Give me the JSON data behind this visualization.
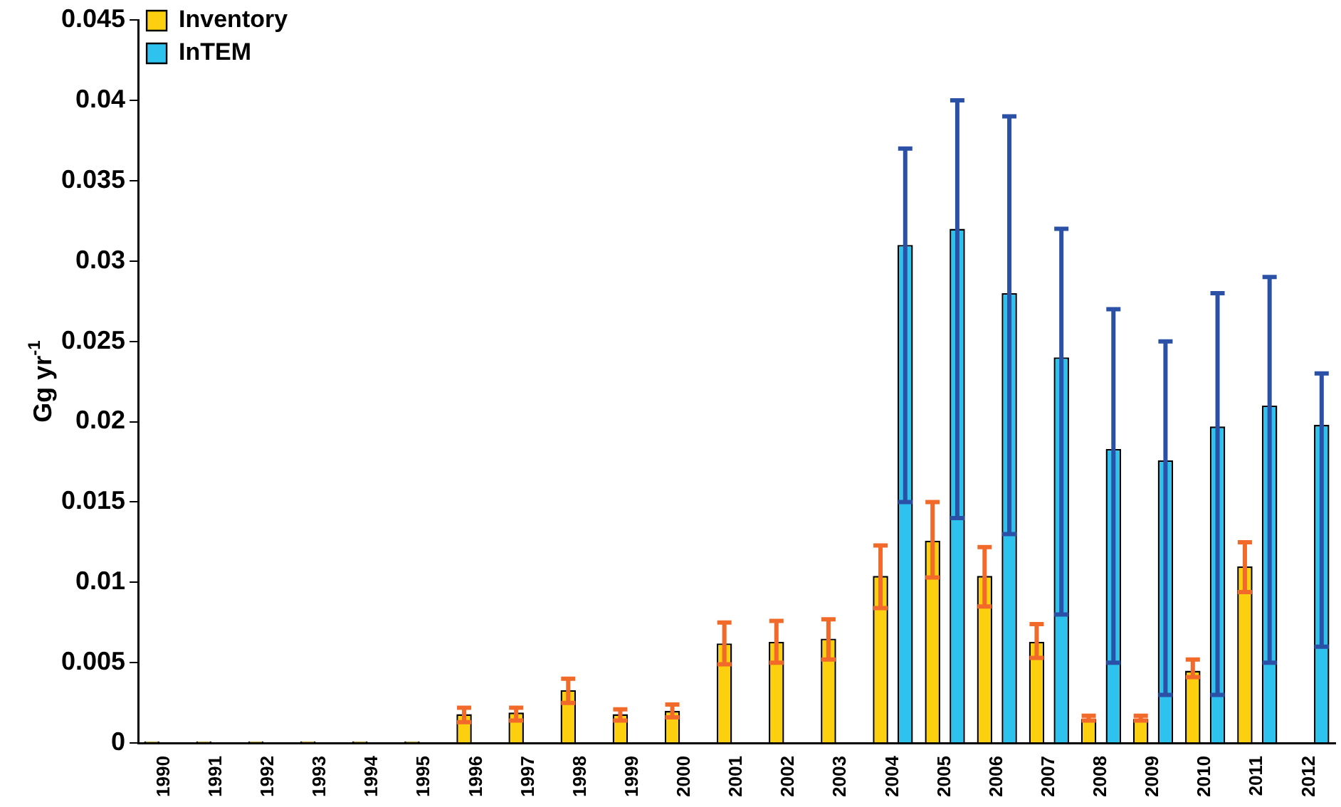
{
  "chart_data": {
    "type": "bar",
    "ylabel": "Gg yr$^{-1}$",
    "categories": [
      "1990",
      "1991",
      "1992",
      "1993",
      "1994",
      "1995",
      "1996",
      "1997",
      "1998",
      "1999",
      "2000",
      "2001",
      "2002",
      "2003",
      "2004",
      "2005",
      "2006",
      "2007",
      "2008",
      "2009",
      "2010",
      "2011",
      "2012"
    ],
    "series": [
      {
        "name": "Inventory",
        "color": "#fccf0f",
        "values": [
          0.0001,
          0.0001,
          0.0001,
          0.0001,
          0.0001,
          0.0001,
          0.0018,
          0.0019,
          0.0033,
          0.0018,
          0.002,
          0.0062,
          0.0063,
          0.0065,
          0.0104,
          0.0126,
          0.0104,
          0.0063,
          0.0015,
          0.0015,
          0.0045,
          0.011,
          null
        ],
        "errors": [
          null,
          null,
          null,
          null,
          null,
          null,
          [
            0.0013,
            0.0022
          ],
          [
            0.0014,
            0.0022
          ],
          [
            0.0025,
            0.004
          ],
          [
            0.0014,
            0.0021
          ],
          [
            0.0016,
            0.0024
          ],
          [
            0.0049,
            0.0075
          ],
          [
            0.005,
            0.0076
          ],
          [
            0.0052,
            0.0077
          ],
          [
            0.0084,
            0.0123
          ],
          [
            0.0103,
            0.015
          ],
          [
            0.0085,
            0.0122
          ],
          [
            0.0053,
            0.0074
          ],
          [
            0.0014,
            0.0017
          ],
          [
            0.0014,
            0.0017
          ],
          [
            0.0041,
            0.0052
          ],
          [
            0.0094,
            0.0125
          ],
          null
        ]
      },
      {
        "name": "InTEM",
        "color": "#2ec2ef",
        "values": [
          null,
          null,
          null,
          null,
          null,
          null,
          null,
          null,
          null,
          null,
          null,
          null,
          null,
          null,
          0.031,
          0.032,
          0.028,
          0.024,
          0.0183,
          0.0176,
          0.0197,
          0.021,
          0.0198
        ],
        "errors": [
          null,
          null,
          null,
          null,
          null,
          null,
          null,
          null,
          null,
          null,
          null,
          null,
          null,
          null,
          [
            0.015,
            0.037
          ],
          [
            0.014,
            0.04
          ],
          [
            0.013,
            0.039
          ],
          [
            0.008,
            0.032
          ],
          [
            0.005,
            0.027
          ],
          [
            0.003,
            0.025
          ],
          [
            0.003,
            0.028
          ],
          [
            0.005,
            0.029
          ],
          [
            0.006,
            0.023
          ]
        ]
      }
    ],
    "ylim": [
      0,
      0.045
    ],
    "yticks": [
      0,
      0.005,
      0.01,
      0.015,
      0.02,
      0.025,
      0.03,
      0.035,
      0.04,
      0.045
    ],
    "grid": false,
    "legend": "top left"
  }
}
